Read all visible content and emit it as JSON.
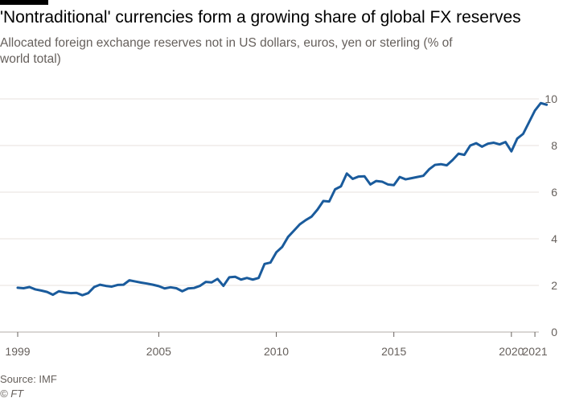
{
  "chart_data": {
    "type": "line",
    "title": "'Nontraditional' currencies form a growing share of global FX reserves",
    "subtitle": "Allocated foreign exchange reserves not in US dollars, euros, yen or sterling (% of world total)",
    "xlabel": "",
    "ylabel": "",
    "xlim": [
      1999.0,
      2021.1
    ],
    "ylim": [
      0,
      10
    ],
    "y_ticks": [
      0,
      2,
      4,
      6,
      8,
      10
    ],
    "x_ticks": [
      {
        "value": 1999,
        "label": "1999"
      },
      {
        "value": 2005,
        "label": "2005"
      },
      {
        "value": 2010,
        "label": "2010"
      },
      {
        "value": 2015,
        "label": "2015"
      },
      {
        "value": 2020,
        "label": "2020"
      },
      {
        "value": 2021,
        "label": "2021"
      }
    ],
    "grid": true,
    "series": [
      {
        "color": "#1a5b9c",
        "points": [
          [
            1999.0,
            1.9
          ],
          [
            1999.25,
            1.88
          ],
          [
            1999.5,
            1.93
          ],
          [
            1999.75,
            1.83
          ],
          [
            2000.0,
            1.78
          ],
          [
            2000.25,
            1.72
          ],
          [
            2000.5,
            1.6
          ],
          [
            2000.75,
            1.75
          ],
          [
            2001.0,
            1.7
          ],
          [
            2001.25,
            1.67
          ],
          [
            2001.5,
            1.68
          ],
          [
            2001.75,
            1.58
          ],
          [
            2002.0,
            1.67
          ],
          [
            2002.25,
            1.93
          ],
          [
            2002.5,
            2.03
          ],
          [
            2002.75,
            1.98
          ],
          [
            2003.0,
            1.95
          ],
          [
            2003.25,
            2.02
          ],
          [
            2003.5,
            2.03
          ],
          [
            2003.75,
            2.22
          ],
          [
            2004.0,
            2.17
          ],
          [
            2004.25,
            2.12
          ],
          [
            2004.5,
            2.08
          ],
          [
            2004.75,
            2.03
          ],
          [
            2005.0,
            1.97
          ],
          [
            2005.25,
            1.87
          ],
          [
            2005.5,
            1.92
          ],
          [
            2005.75,
            1.88
          ],
          [
            2006.0,
            1.75
          ],
          [
            2006.25,
            1.87
          ],
          [
            2006.5,
            1.89
          ],
          [
            2006.75,
            1.98
          ],
          [
            2007.0,
            2.15
          ],
          [
            2007.25,
            2.13
          ],
          [
            2007.5,
            2.28
          ],
          [
            2007.75,
            1.98
          ],
          [
            2008.0,
            2.35
          ],
          [
            2008.25,
            2.37
          ],
          [
            2008.5,
            2.25
          ],
          [
            2008.75,
            2.32
          ],
          [
            2009.0,
            2.25
          ],
          [
            2009.25,
            2.32
          ],
          [
            2009.5,
            2.92
          ],
          [
            2009.75,
            2.98
          ],
          [
            2010.0,
            3.42
          ],
          [
            2010.25,
            3.65
          ],
          [
            2010.5,
            4.08
          ],
          [
            2010.75,
            4.35
          ],
          [
            2011.0,
            4.62
          ],
          [
            2011.25,
            4.8
          ],
          [
            2011.5,
            4.95
          ],
          [
            2011.75,
            5.25
          ],
          [
            2012.0,
            5.62
          ],
          [
            2012.25,
            5.6
          ],
          [
            2012.5,
            6.12
          ],
          [
            2012.75,
            6.25
          ],
          [
            2013.0,
            6.8
          ],
          [
            2013.25,
            6.57
          ],
          [
            2013.5,
            6.67
          ],
          [
            2013.75,
            6.68
          ],
          [
            2014.0,
            6.33
          ],
          [
            2014.25,
            6.48
          ],
          [
            2014.5,
            6.45
          ],
          [
            2014.75,
            6.33
          ],
          [
            2015.0,
            6.3
          ],
          [
            2015.25,
            6.65
          ],
          [
            2015.5,
            6.55
          ],
          [
            2015.75,
            6.6
          ],
          [
            2016.0,
            6.65
          ],
          [
            2016.25,
            6.7
          ],
          [
            2016.5,
            6.98
          ],
          [
            2016.75,
            7.17
          ],
          [
            2017.0,
            7.2
          ],
          [
            2017.25,
            7.15
          ],
          [
            2017.5,
            7.38
          ],
          [
            2017.75,
            7.65
          ],
          [
            2018.0,
            7.6
          ],
          [
            2018.25,
            8.0
          ],
          [
            2018.5,
            8.1
          ],
          [
            2018.75,
            7.95
          ],
          [
            2019.0,
            8.08
          ],
          [
            2019.25,
            8.12
          ],
          [
            2019.5,
            8.05
          ],
          [
            2019.75,
            8.15
          ],
          [
            2020.0,
            7.75
          ],
          [
            2020.25,
            8.3
          ],
          [
            2020.5,
            8.5
          ],
          [
            2020.75,
            9.0
          ],
          [
            2021.0,
            9.5
          ],
          [
            2021.25,
            9.82
          ],
          [
            2021.5,
            9.75
          ]
        ]
      }
    ]
  },
  "footer": {
    "source": "Source: IMF",
    "copyright": "© FT"
  }
}
